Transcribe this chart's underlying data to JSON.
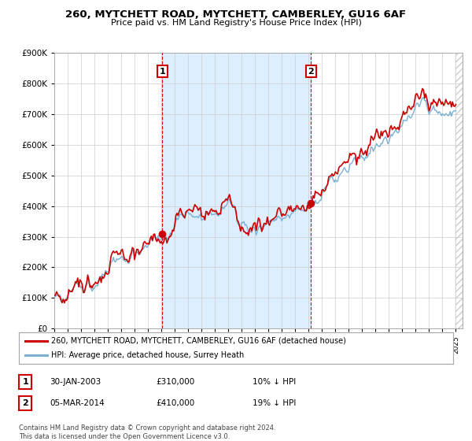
{
  "title": "260, MYTCHETT ROAD, MYTCHETT, CAMBERLEY, GU16 6AF",
  "subtitle": "Price paid vs. HM Land Registry's House Price Index (HPI)",
  "legend_line1": "260, MYTCHETT ROAD, MYTCHETT, CAMBERLEY, GU16 6AF (detached house)",
  "legend_line2": "HPI: Average price, detached house, Surrey Heath",
  "annotation1_date": "30-JAN-2003",
  "annotation1_price": "£310,000",
  "annotation1_hpi": "10% ↓ HPI",
  "annotation2_date": "05-MAR-2014",
  "annotation2_price": "£410,000",
  "annotation2_hpi": "19% ↓ HPI",
  "footer": "Contains HM Land Registry data © Crown copyright and database right 2024.\nThis data is licensed under the Open Government Licence v3.0.",
  "red_color": "#cc0000",
  "blue_color": "#7ab0d4",
  "vline_color": "#cc0000",
  "annotation_box_color": "#cc0000",
  "shade_color": "#ddeeff",
  "ylim": [
    0,
    900000
  ],
  "yticks": [
    0,
    100000,
    200000,
    300000,
    400000,
    500000,
    600000,
    700000,
    800000,
    900000
  ],
  "year_start": 1995,
  "year_end": 2025,
  "purchase1_year": 2003.08,
  "purchase1_price": 310000,
  "purchase2_year": 2014.17,
  "purchase2_price": 410000
}
